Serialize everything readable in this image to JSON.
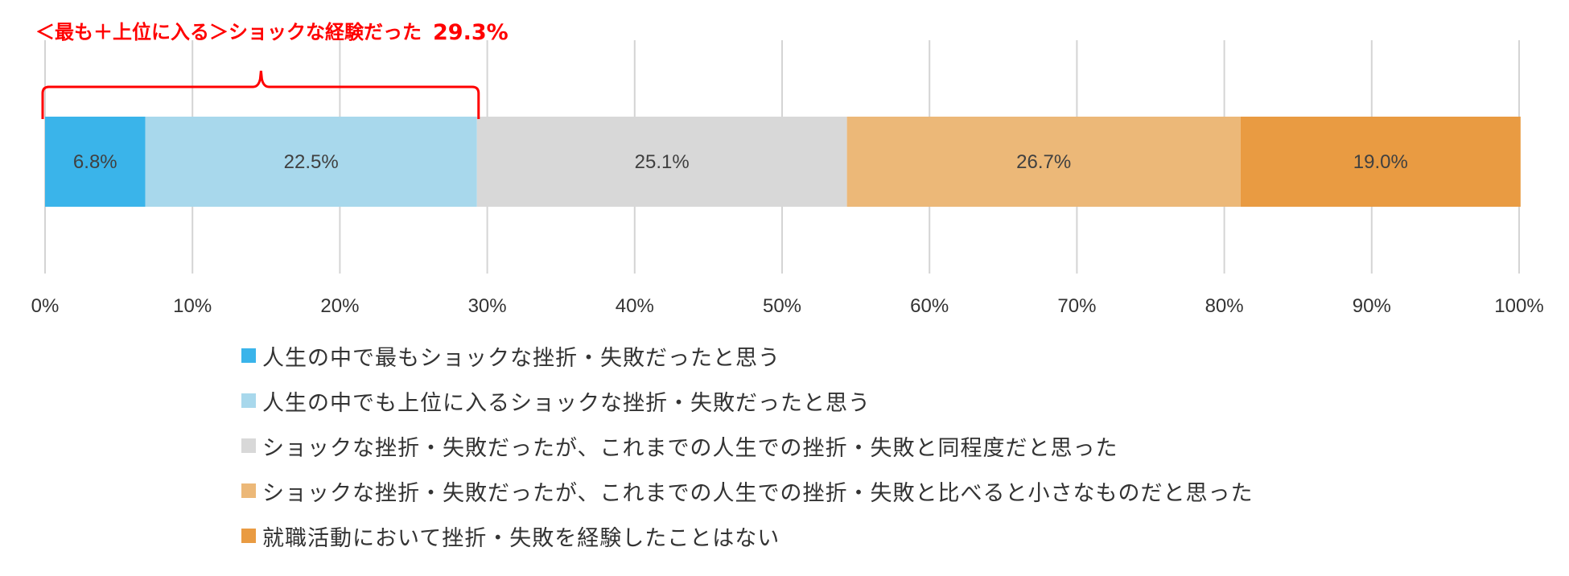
{
  "chart_data": {
    "type": "bar",
    "orientation": "horizontal",
    "stacked": true,
    "unit": "%",
    "xlim": [
      0,
      100
    ],
    "xticks": [
      "0%",
      "10%",
      "20%",
      "30%",
      "40%",
      "50%",
      "60%",
      "70%",
      "80%",
      "90%",
      "100%"
    ],
    "grid": true,
    "legend_position": "bottom",
    "series": [
      {
        "name": "人生の中で最もショックな挫折・失敗だったと思う",
        "value": 6.8,
        "label": "6.8%",
        "color": "#3ab4ea"
      },
      {
        "name": "人生の中でも上位に入るショックな挫折・失敗だったと思う",
        "value": 22.5,
        "label": "22.5%",
        "color": "#a8d8ec"
      },
      {
        "name": "ショックな挫折・失敗だったが、これまでの人生での挫折・失敗と同程度だと思った",
        "value": 25.1,
        "label": "25.1%",
        "color": "#d8d8d8"
      },
      {
        "name": "ショックな挫折・失敗だったが、これまでの人生での挫折・失敗と比べると小さなものだと思った",
        "value": 26.7,
        "label": "26.7%",
        "color": "#ecb878"
      },
      {
        "name": "就職活動において挫折・失敗を経験したことはない",
        "value": 19.0,
        "label": "19.0%",
        "color": "#e99b42"
      }
    ],
    "annotation": {
      "text": "＜最も＋上位に入る＞ショックな経験だった",
      "value": "29.3%",
      "span": [
        0,
        29.3
      ],
      "color": "#ff0000"
    }
  }
}
